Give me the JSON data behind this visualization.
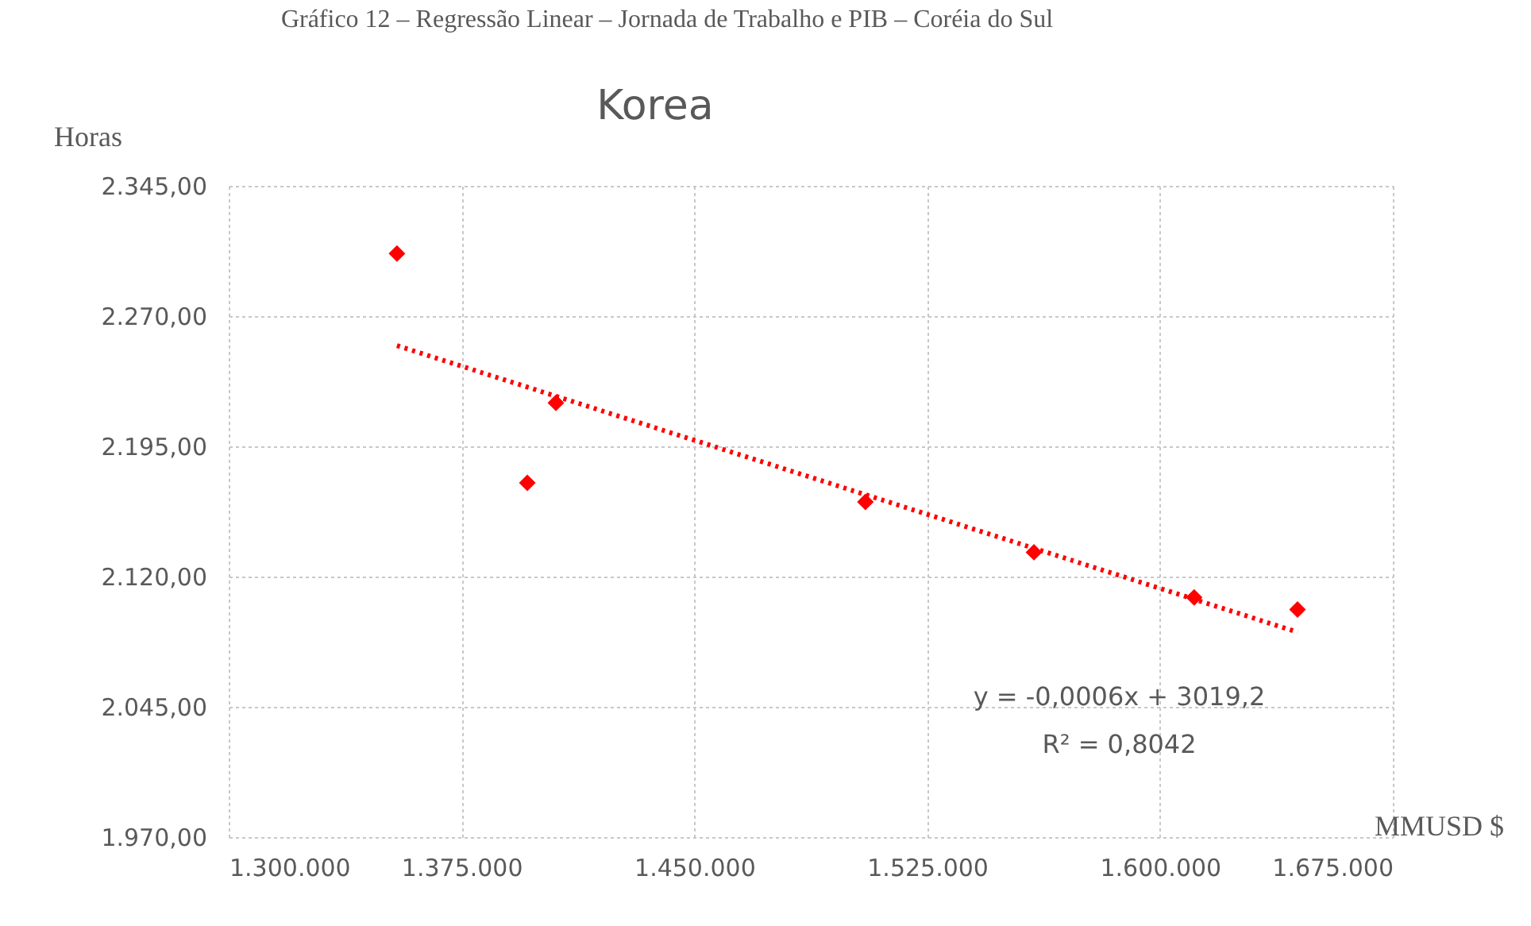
{
  "chart_data": {
    "type": "scatter",
    "title": "Korea",
    "xlabel": "MMUSD $",
    "ylabel": "Horas",
    "annotations": [
      "Gráfico 12 – Regressão Linear – Jornada de Trabalho e PIB – Coréia do Sul",
      "y = -0,0006x + 3019,2",
      "R² = 0,8042"
    ],
    "series": [
      {
        "color": "#ff0000",
        "marker": "diamond",
        "x": [
          1354200,
          1396200,
          1405400,
          1505100,
          1559400,
          1611000,
          1644300
        ],
        "values": [
          2306,
          2174,
          2220,
          2163,
          2134,
          2108,
          2101
        ]
      },
      {
        "type": "line",
        "color": "#ff0000",
        "line_style": "dotted",
        "x": [
          1354200,
          1644300
        ],
        "values": [
          2253,
          2088
        ]
      }
    ],
    "xlim": [
      1300000,
      1675000
    ],
    "xticks": [
      {
        "value": 1300000,
        "label": "1.300.000"
      },
      {
        "value": 1375000,
        "label": "1.375.000"
      },
      {
        "value": 1450000,
        "label": "1.450.000"
      },
      {
        "value": 1525000,
        "label": "1.525.000"
      },
      {
        "value": 1600000,
        "label": "1.600.000"
      },
      {
        "value": 1675000,
        "label": "1.675.000"
      }
    ],
    "ylim": [
      1970,
      2345
    ],
    "yticks": [
      {
        "value": 1970,
        "label": "1.970,00"
      },
      {
        "value": 2045,
        "label": "2.045,00"
      },
      {
        "value": 2120,
        "label": "2.120,00"
      },
      {
        "value": 2195,
        "label": "2.195,00"
      },
      {
        "value": 2270,
        "label": "2.270,00"
      },
      {
        "value": 2345,
        "label": "2.345,00"
      }
    ],
    "grid": true
  }
}
